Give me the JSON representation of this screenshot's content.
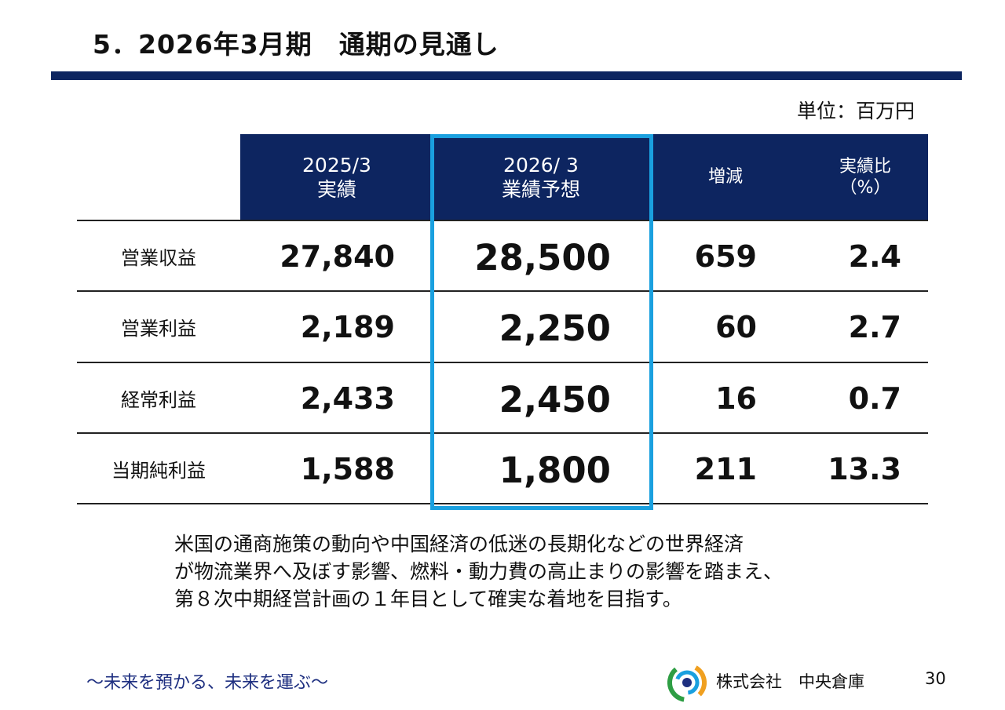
{
  "title": "5．2026年3月期　通期の見通し",
  "unit": "単位：百万円",
  "table": {
    "headers": [
      {
        "line1": "2025/3",
        "line2": "実績"
      },
      {
        "line1": "2026/ 3",
        "line2": "業績予想"
      },
      {
        "line1": "増減",
        "line2": ""
      },
      {
        "line1": "実績比",
        "line2": "（%）"
      }
    ],
    "rows": [
      {
        "label": "営業収益",
        "actual": "27,840",
        "forecast": "28,500",
        "change": "659",
        "ratio": "2.4"
      },
      {
        "label": "営業利益",
        "actual": "2,189",
        "forecast": "2,250",
        "change": "60",
        "ratio": "2.7"
      },
      {
        "label": "経常利益",
        "actual": "2,433",
        "forecast": "2,450",
        "change": "16",
        "ratio": "0.7"
      },
      {
        "label": "当期純利益",
        "actual": "1,588",
        "forecast": "1,800",
        "change": "211",
        "ratio": "13.3"
      }
    ]
  },
  "comment": [
    "米国の通商施策の動向や中国経済の低迷の長期化などの世界経済",
    "が物流業界へ及ぼす影響、燃料・動力費の高止まりの影響を踏まえ、",
    "第８次中期経営計画の１年目として確実な着地を目指す。"
  ],
  "footer": {
    "slogan": "～未来を預かる、未来を運ぶ～",
    "company": "株式会社　中央倉庫",
    "page": "30"
  },
  "colors": {
    "navy": "#0d2560",
    "highlight": "#1aa0df",
    "slogan": "#1e2f80"
  }
}
